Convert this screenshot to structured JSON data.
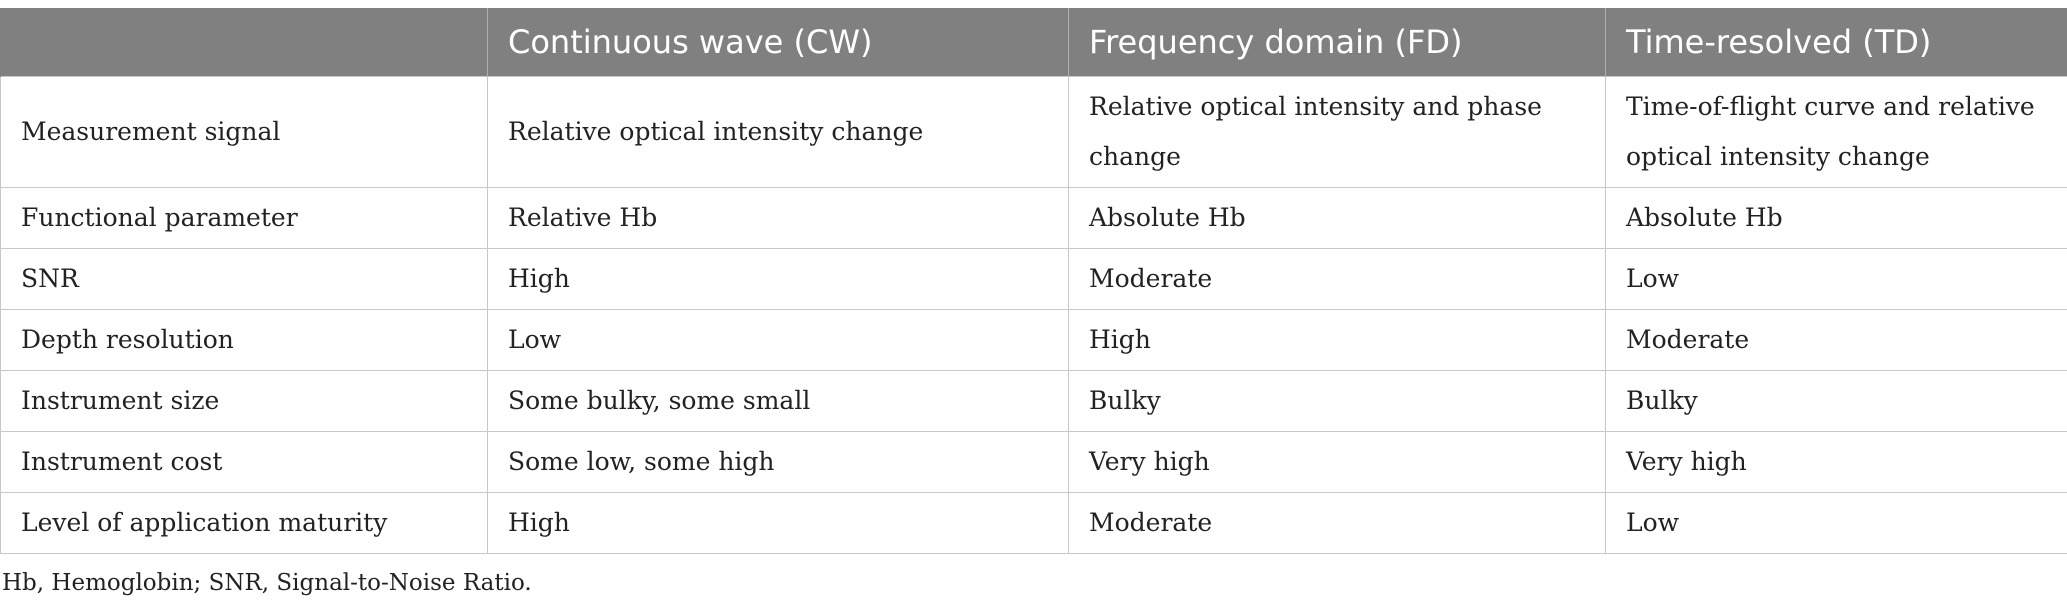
{
  "table": {
    "headers": [
      "",
      "Continuous wave (CW)",
      "Frequency domain (FD)",
      "Time-resolved (TD)"
    ],
    "rows": [
      [
        "Measurement signal",
        "Relative optical intensity change",
        "Relative optical intensity and phase change",
        "Time-of-flight curve and relative optical intensity change"
      ],
      [
        "Functional parameter",
        "Relative Hb",
        "Absolute Hb",
        "Absolute Hb"
      ],
      [
        "SNR",
        "High",
        "Moderate",
        "Low"
      ],
      [
        "Depth resolution",
        "Low",
        "High",
        "Moderate"
      ],
      [
        "Instrument size",
        "Some bulky, some small",
        "Bulky",
        "Bulky"
      ],
      [
        "Instrument cost",
        "Some low, some high",
        "Very high",
        "Very high"
      ],
      [
        "Level of application maturity",
        "High",
        "Moderate",
        "Low"
      ]
    ]
  },
  "footnote": "Hb, Hemoglobin; SNR, Signal-to-Noise Ratio."
}
